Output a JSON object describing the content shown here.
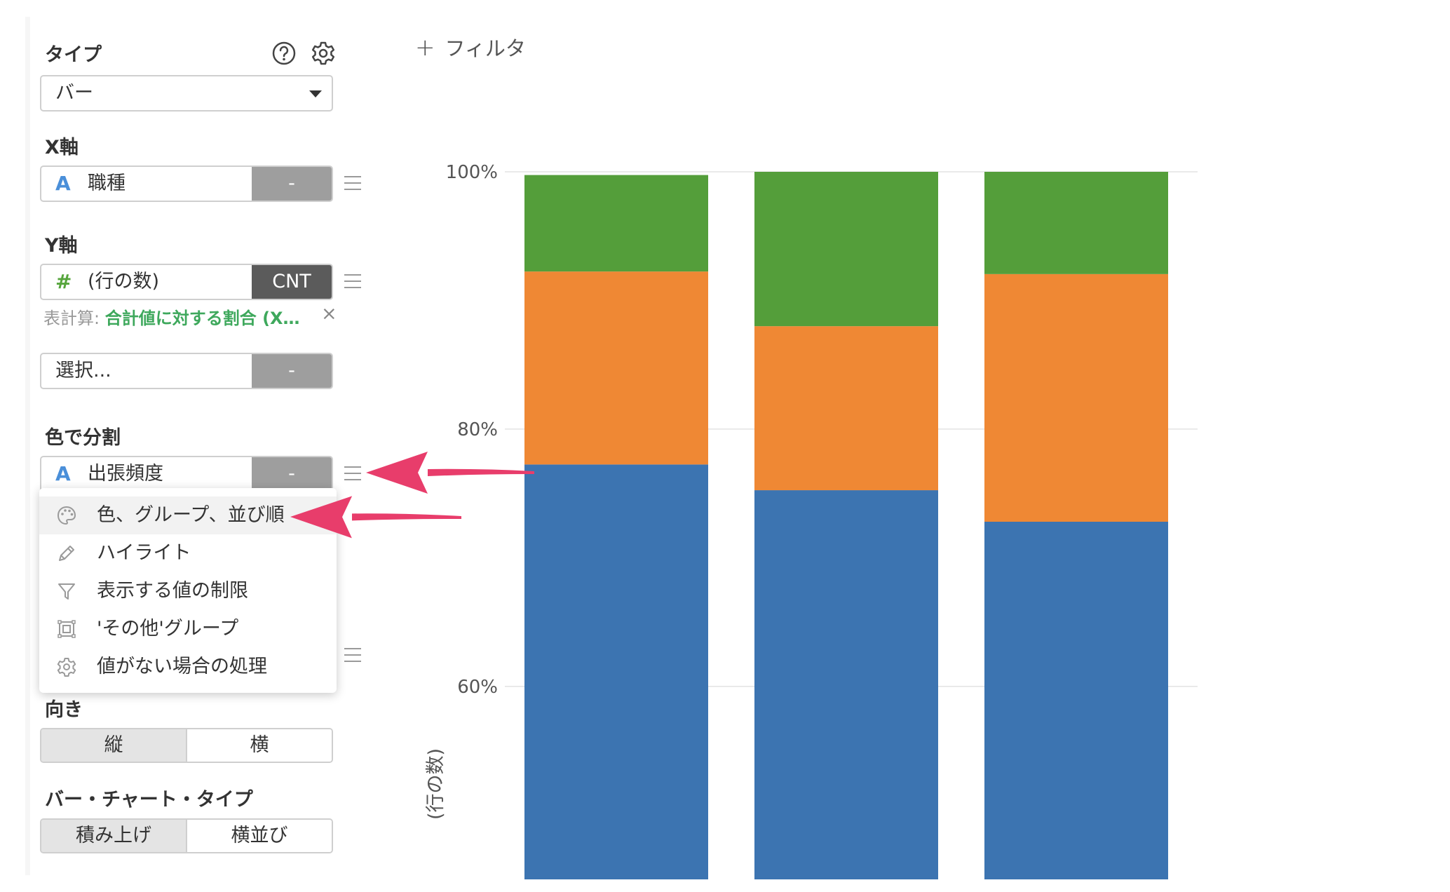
{
  "sidebar": {
    "type_label": "タイプ",
    "chart_type": "バー",
    "x_axis": {
      "label": "X軸",
      "type_icon": "A",
      "field": "職種",
      "agg": "-"
    },
    "y_axis": {
      "label": "Y軸",
      "type_icon": "#",
      "field": "(行の数)",
      "agg": "CNT"
    },
    "table_calc": {
      "prefix": "表計算: ",
      "value": "合計値に対する割合 (X…",
      "close": "×"
    },
    "extra_y": {
      "placeholder": "選択...",
      "agg": "-"
    },
    "color_split": {
      "label": "色で分割",
      "type_icon": "A",
      "field": "出張頻度",
      "agg": "-"
    },
    "orientation": {
      "label": "向き",
      "options": [
        "縦",
        "横"
      ],
      "selected": "縦"
    },
    "bar_type": {
      "label": "バー・チャート・タイプ",
      "options": [
        "積み上げ",
        "横並び"
      ],
      "selected": "積み上げ"
    }
  },
  "context_menu": {
    "items": [
      {
        "label": "色、グループ、並び順",
        "icon": "palette-icon"
      },
      {
        "label": "ハイライト",
        "icon": "pencil-icon"
      },
      {
        "label": "表示する値の制限",
        "icon": "filter-icon"
      },
      {
        "label": "'その他'グループ",
        "icon": "group-box-icon"
      },
      {
        "label": "値がない場合の処理",
        "icon": "gear-icon"
      }
    ]
  },
  "toolbar": {
    "filter_label": "フィルタ"
  },
  "colors": {
    "series1": "#3c74b1",
    "series2": "#ef8834",
    "series3": "#549e3a",
    "arrow": "#e83d6b"
  },
  "chart_data": {
    "type": "bar",
    "stacked": true,
    "ylabel": "(行の数)",
    "y_ticks": [
      "100%",
      "80%",
      "60%"
    ],
    "y_visible_range": [
      0.45,
      1.0
    ],
    "series": [
      {
        "values": [
          0.7725,
          0.7525,
          0.728
        ]
      },
      {
        "values": [
          0.15,
          0.1275,
          0.1925
        ]
      },
      {
        "values": [
          0.075,
          0.12,
          0.0795
        ]
      }
    ]
  }
}
